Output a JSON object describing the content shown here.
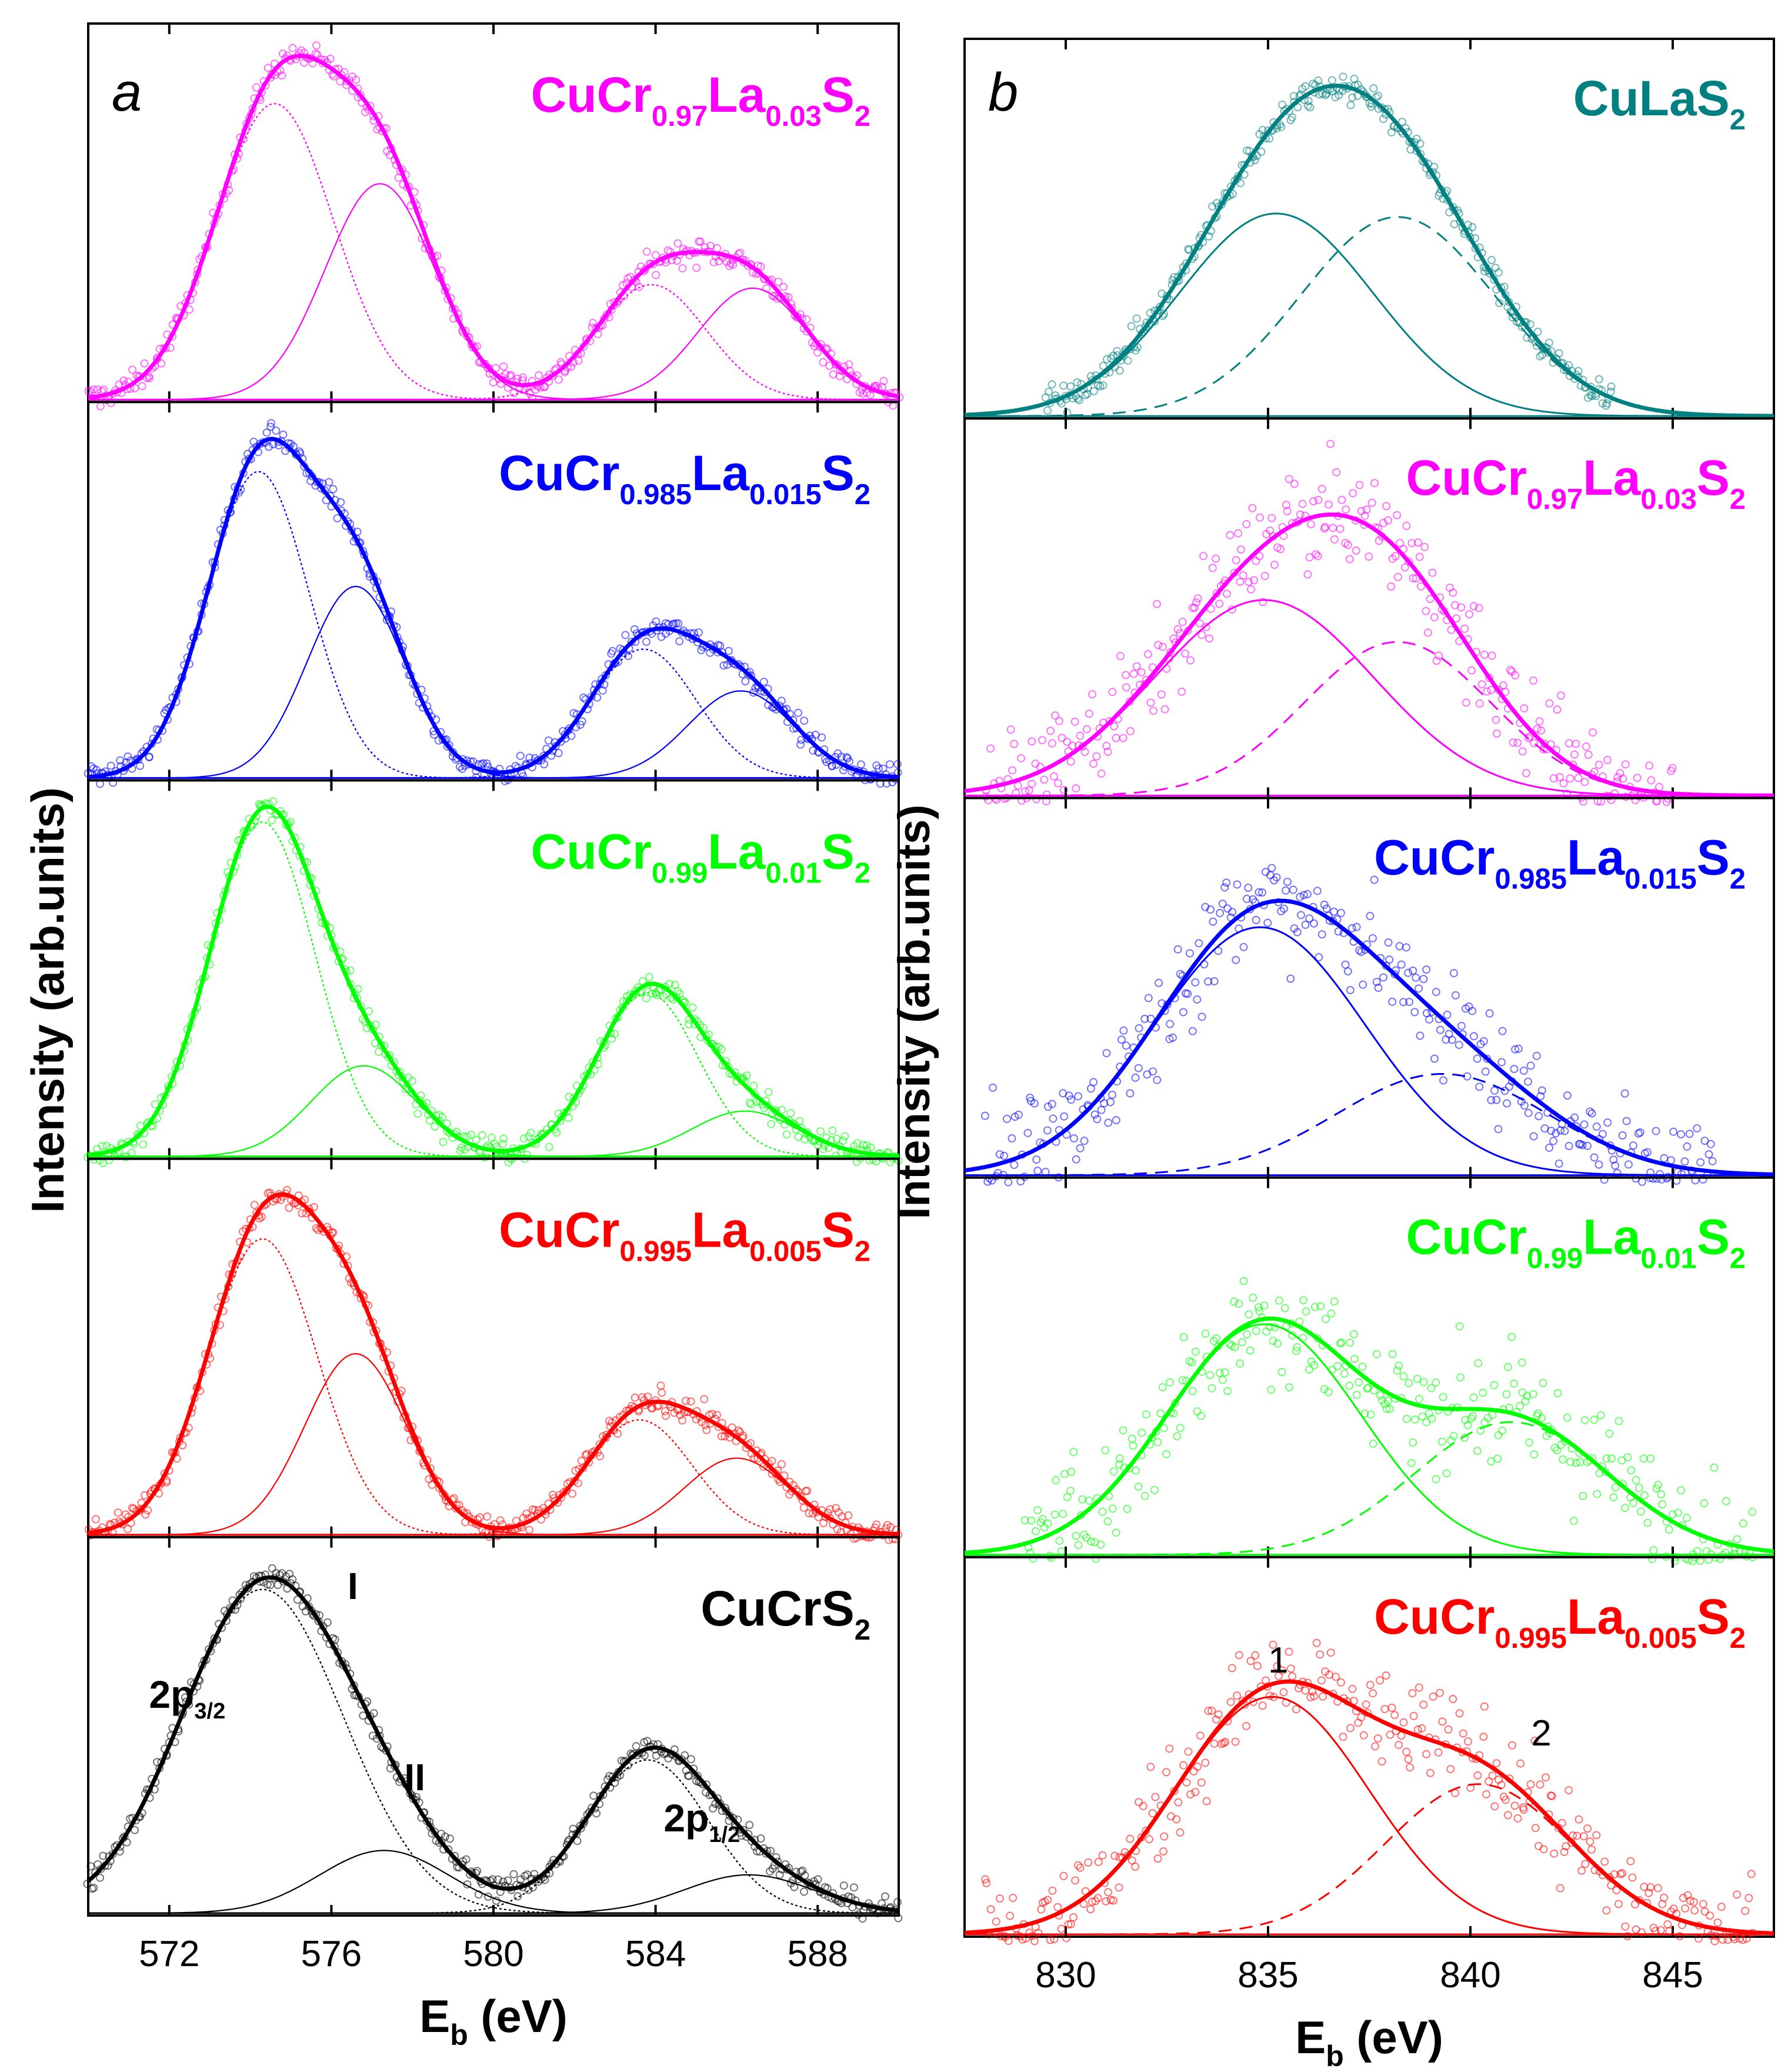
{
  "colors": {
    "magenta": "#ff00ff",
    "blue": "#0000ff",
    "green": "#00ff00",
    "red": "#ff0000",
    "black": "#000000",
    "teal": "#008080"
  },
  "y_axis_label": "Intensity (arb.units)",
  "chart_data": [
    {
      "type": "line",
      "panel_letter": "a",
      "xlabel_main": "E",
      "xlabel_sub": "b",
      "xlabel_unit": " (eV)",
      "ylabel": "Intensity (arb.units)",
      "xlim": [
        570,
        590
      ],
      "xticks": [
        572,
        576,
        580,
        584,
        588
      ],
      "stacked_panels": [
        {
          "label_parts": [
            {
              "t": "CuCr",
              "s": false
            },
            {
              "t": "0.97",
              "s": true
            },
            {
              "t": "La",
              "s": false
            },
            {
              "t": "0.03",
              "s": true
            },
            {
              "t": "S",
              "s": false
            },
            {
              "t": "2",
              "s": true
            }
          ],
          "color": "#ff00ff",
          "components": [
            {
              "center": 574.6,
              "height": 0.85,
              "width": 1.45,
              "style": "dotted"
            },
            {
              "center": 577.2,
              "height": 0.62,
              "width": 1.35,
              "style": "solid"
            },
            {
              "center": 583.9,
              "height": 0.33,
              "width": 1.35,
              "style": "dotted"
            },
            {
              "center": 586.4,
              "height": 0.32,
              "width": 1.35,
              "style": "solid"
            }
          ]
        },
        {
          "label_parts": [
            {
              "t": "CuCr",
              "s": false
            },
            {
              "t": "0.985",
              "s": true
            },
            {
              "t": "La",
              "s": false
            },
            {
              "t": "0.015",
              "s": true
            },
            {
              "t": "S",
              "s": false
            },
            {
              "t": "2",
              "s": true
            }
          ],
          "color": "#0000ff",
          "components": [
            {
              "center": 574.2,
              "height": 0.88,
              "width": 1.25,
              "style": "dotted"
            },
            {
              "center": 576.6,
              "height": 0.55,
              "width": 1.2,
              "style": "solid"
            },
            {
              "center": 583.7,
              "height": 0.37,
              "width": 1.3,
              "style": "dotted"
            },
            {
              "center": 586.1,
              "height": 0.25,
              "width": 1.3,
              "style": "solid"
            }
          ]
        },
        {
          "label_parts": [
            {
              "t": "CuCr",
              "s": false
            },
            {
              "t": "0.99",
              "s": true
            },
            {
              "t": "La",
              "s": false
            },
            {
              "t": "0.01",
              "s": true
            },
            {
              "t": "S",
              "s": false
            },
            {
              "t": "2",
              "s": true
            }
          ],
          "color": "#00ff00",
          "components": [
            {
              "center": 574.3,
              "height": 0.96,
              "width": 1.3,
              "style": "dotted"
            },
            {
              "center": 576.8,
              "height": 0.26,
              "width": 1.3,
              "style": "solid"
            },
            {
              "center": 583.8,
              "height": 0.47,
              "width": 1.25,
              "style": "dotted"
            },
            {
              "center": 586.2,
              "height": 0.13,
              "width": 1.3,
              "style": "solid"
            }
          ]
        },
        {
          "label_parts": [
            {
              "t": "CuCr",
              "s": false
            },
            {
              "t": "0.995",
              "s": true
            },
            {
              "t": "La",
              "s": false
            },
            {
              "t": "0.005",
              "s": true
            },
            {
              "t": "S",
              "s": false
            },
            {
              "t": "2",
              "s": true
            }
          ],
          "color": "#ff0000",
          "components": [
            {
              "center": 574.3,
              "height": 0.85,
              "width": 1.35,
              "style": "dotted"
            },
            {
              "center": 576.6,
              "height": 0.52,
              "width": 1.25,
              "style": "solid"
            },
            {
              "center": 583.6,
              "height": 0.33,
              "width": 1.3,
              "style": "dotted"
            },
            {
              "center": 586.0,
              "height": 0.22,
              "width": 1.3,
              "style": "solid"
            }
          ]
        },
        {
          "label_parts": [
            {
              "t": "CuCrS",
              "s": false
            },
            {
              "t": "2",
              "s": true
            }
          ],
          "color": "#000000",
          "components": [
            {
              "center": 574.3,
              "height": 0.93,
              "width": 2.0,
              "style": "dotted"
            },
            {
              "center": 577.3,
              "height": 0.18,
              "width": 1.6,
              "style": "solid"
            },
            {
              "center": 583.8,
              "height": 0.44,
              "width": 1.5,
              "style": "dotted"
            },
            {
              "center": 586.3,
              "height": 0.11,
              "width": 1.6,
              "style": "solid"
            }
          ],
          "annotations": {
            "peak1": "I",
            "peak2": "II",
            "p32_main": "2p",
            "p32_sub": "3/2",
            "p12_main": "2p",
            "p12_sub": "1/2"
          }
        }
      ]
    },
    {
      "type": "line",
      "panel_letter": "b",
      "xlabel_main": "E",
      "xlabel_sub": "b",
      "xlabel_unit": " (eV)",
      "ylabel": "Intensity (arb.units)",
      "xlim": [
        827.5,
        847.5
      ],
      "xticks": [
        830,
        835,
        840,
        845
      ],
      "stacked_panels": [
        {
          "label_parts": [
            {
              "t": "CuLaS",
              "s": false
            },
            {
              "t": "2",
              "s": true
            }
          ],
          "color": "#008080",
          "noise": 0.04,
          "scatter_range": [
            829.5,
            843.5
          ],
          "components": [
            {
              "center": 835.2,
              "height": 0.58,
              "width": 2.4,
              "style": "solid"
            },
            {
              "center": 838.2,
              "height": 0.57,
              "width": 2.4,
              "style": "dashed"
            }
          ]
        },
        {
          "label_parts": [
            {
              "t": "CuCr",
              "s": false
            },
            {
              "t": "0.97",
              "s": true
            },
            {
              "t": "La",
              "s": false
            },
            {
              "t": "0.03",
              "s": true
            },
            {
              "t": "S",
              "s": false
            },
            {
              "t": "2",
              "s": true
            }
          ],
          "color": "#ff00ff",
          "noise": 0.14,
          "scatter_range": [
            828.0,
            845.0
          ],
          "components": [
            {
              "center": 834.9,
              "height": 0.56,
              "width": 2.7,
              "style": "solid"
            },
            {
              "center": 838.2,
              "height": 0.44,
              "width": 2.3,
              "style": "dashed"
            }
          ]
        },
        {
          "label_parts": [
            {
              "t": "CuCr",
              "s": false
            },
            {
              "t": "0.985",
              "s": true
            },
            {
              "t": "La",
              "s": false
            },
            {
              "t": "0.015",
              "s": true
            },
            {
              "t": "S",
              "s": false
            },
            {
              "t": "2",
              "s": true
            }
          ],
          "color": "#0000ff",
          "noise": 0.16,
          "scatter_range": [
            828.0,
            846.0
          ],
          "components": [
            {
              "center": 834.8,
              "height": 0.71,
              "width": 2.6,
              "style": "solid"
            },
            {
              "center": 839.3,
              "height": 0.29,
              "width": 2.6,
              "style": "dashed"
            }
          ]
        },
        {
          "label_parts": [
            {
              "t": "CuCr",
              "s": false
            },
            {
              "t": "0.99",
              "s": true
            },
            {
              "t": "La",
              "s": false
            },
            {
              "t": "0.01",
              "s": true
            },
            {
              "t": "S",
              "s": false
            },
            {
              "t": "2",
              "s": true
            }
          ],
          "color": "#00ff00",
          "noise": 0.17,
          "scatter_range": [
            829.0,
            847.0
          ],
          "components": [
            {
              "center": 834.9,
              "height": 0.66,
              "width": 2.4,
              "style": "solid"
            },
            {
              "center": 841.0,
              "height": 0.38,
              "width": 2.4,
              "style": "dashed"
            }
          ]
        },
        {
          "label_parts": [
            {
              "t": "CuCr",
              "s": false
            },
            {
              "t": "0.995",
              "s": true
            },
            {
              "t": "La",
              "s": false
            },
            {
              "t": "0.005",
              "s": true
            },
            {
              "t": "S",
              "s": false
            },
            {
              "t": "2",
              "s": true
            }
          ],
          "color": "#ff0000",
          "noise": 0.14,
          "scatter_range": [
            828.0,
            847.0
          ],
          "components": [
            {
              "center": 835.1,
              "height": 0.68,
              "width": 2.4,
              "style": "solid"
            },
            {
              "center": 840.2,
              "height": 0.43,
              "width": 2.3,
              "style": "dashed"
            }
          ],
          "annotations": {
            "peak1": "1",
            "peak2": "2"
          }
        }
      ]
    }
  ]
}
